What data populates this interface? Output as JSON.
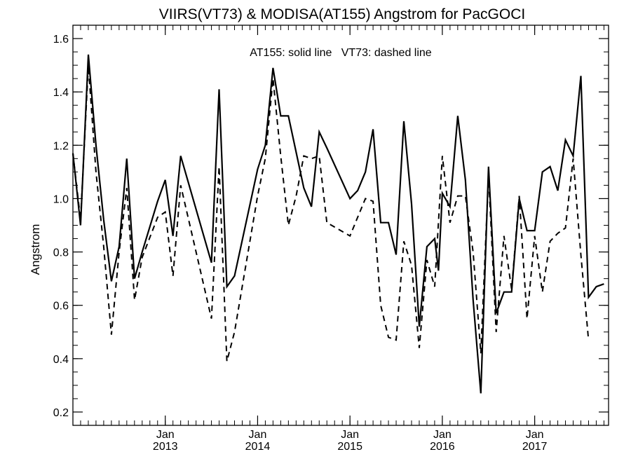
{
  "chart_data": {
    "type": "line",
    "title": "VIIRS(VT73) & MODISA(AT155)  Angstrom for PacGOCI",
    "ylabel": "Angstrom",
    "xlabel": "",
    "annotation": "AT155: solid line   VT73: dashed line",
    "xlim": [
      2012.0,
      2017.8
    ],
    "ylim": [
      0.15,
      1.65
    ],
    "y_ticks": [
      0.2,
      0.4,
      0.6,
      0.8,
      1.0,
      1.2,
      1.4,
      1.6
    ],
    "y_tick_labels": [
      "0.2",
      "0.4",
      "0.6",
      "0.8",
      "1.0",
      "1.2",
      "1.4",
      "1.6"
    ],
    "x_ticks": [
      {
        "x": 2013.0,
        "month": "Jan",
        "year": "2013"
      },
      {
        "x": 2014.0,
        "month": "Jan",
        "year": "2014"
      },
      {
        "x": 2015.0,
        "month": "Jan",
        "year": "2015"
      },
      {
        "x": 2016.0,
        "month": "Jan",
        "year": "2016"
      },
      {
        "x": 2017.0,
        "month": "Jan",
        "year": "2017"
      }
    ],
    "grid": false,
    "series": [
      {
        "name": "AT155",
        "style": "solid",
        "color": "#000000",
        "points": [
          [
            2012.0,
            1.17
          ],
          [
            2012.083,
            0.9
          ],
          [
            2012.167,
            1.54
          ],
          [
            2012.25,
            1.2
          ],
          [
            2012.333,
            0.92
          ],
          [
            2012.417,
            0.69
          ],
          [
            2012.5,
            0.82
          ],
          [
            2012.583,
            1.15
          ],
          [
            2012.667,
            0.7
          ],
          [
            2012.75,
            0.8
          ],
          [
            2012.917,
            0.99
          ],
          [
            2013.0,
            1.07
          ],
          [
            2013.083,
            0.86
          ],
          [
            2013.167,
            1.16
          ],
          [
            2013.5,
            0.76
          ],
          [
            2013.583,
            1.41
          ],
          [
            2013.667,
            0.67
          ],
          [
            2013.75,
            0.71
          ],
          [
            2014.0,
            1.11
          ],
          [
            2014.083,
            1.2
          ],
          [
            2014.167,
            1.49
          ],
          [
            2014.25,
            1.31
          ],
          [
            2014.333,
            1.31
          ],
          [
            2014.5,
            1.04
          ],
          [
            2014.583,
            0.97
          ],
          [
            2014.667,
            1.25
          ],
          [
            2014.75,
            1.19
          ],
          [
            2015.0,
            1.0
          ],
          [
            2015.083,
            1.03
          ],
          [
            2015.167,
            1.1
          ],
          [
            2015.25,
            1.26
          ],
          [
            2015.333,
            0.91
          ],
          [
            2015.417,
            0.91
          ],
          [
            2015.5,
            0.79
          ],
          [
            2015.583,
            1.29
          ],
          [
            2015.667,
            0.98
          ],
          [
            2015.75,
            0.52
          ],
          [
            2015.833,
            0.82
          ],
          [
            2015.917,
            0.85
          ],
          [
            2015.958,
            0.73
          ],
          [
            2016.0,
            1.02
          ],
          [
            2016.083,
            0.97
          ],
          [
            2016.167,
            1.31
          ],
          [
            2016.25,
            1.07
          ],
          [
            2016.333,
            0.62
          ],
          [
            2016.417,
            0.27
          ],
          [
            2016.5,
            1.12
          ],
          [
            2016.583,
            0.57
          ],
          [
            2016.667,
            0.65
          ],
          [
            2016.75,
            0.65
          ],
          [
            2016.833,
            1.0
          ],
          [
            2016.917,
            0.88
          ],
          [
            2017.0,
            0.88
          ],
          [
            2017.083,
            1.1
          ],
          [
            2017.167,
            1.12
          ],
          [
            2017.25,
            1.03
          ],
          [
            2017.333,
            1.22
          ],
          [
            2017.417,
            1.16
          ],
          [
            2017.5,
            1.46
          ],
          [
            2017.583,
            0.63
          ],
          [
            2017.667,
            0.67
          ],
          [
            2017.75,
            0.68
          ]
        ]
      },
      {
        "name": "VT73",
        "style": "dashed",
        "color": "#000000",
        "points": [
          [
            2012.0,
            1.17
          ],
          [
            2012.083,
            0.92
          ],
          [
            2012.167,
            1.5
          ],
          [
            2012.25,
            1.1
          ],
          [
            2012.333,
            0.82
          ],
          [
            2012.417,
            0.49
          ],
          [
            2012.5,
            0.8
          ],
          [
            2012.583,
            1.04
          ],
          [
            2012.667,
            0.62
          ],
          [
            2012.75,
            0.78
          ],
          [
            2012.917,
            0.93
          ],
          [
            2013.0,
            0.95
          ],
          [
            2013.083,
            0.71
          ],
          [
            2013.167,
            1.05
          ],
          [
            2013.5,
            0.55
          ],
          [
            2013.583,
            1.12
          ],
          [
            2013.667,
            0.39
          ],
          [
            2013.75,
            0.5
          ],
          [
            2014.0,
            1.01
          ],
          [
            2014.083,
            1.15
          ],
          [
            2014.167,
            1.45
          ],
          [
            2014.25,
            1.16
          ],
          [
            2014.333,
            0.9
          ],
          [
            2014.417,
            1.01
          ],
          [
            2014.5,
            1.16
          ],
          [
            2014.583,
            1.15
          ],
          [
            2014.667,
            1.16
          ],
          [
            2014.75,
            0.91
          ],
          [
            2015.0,
            0.86
          ],
          [
            2015.083,
            0.93
          ],
          [
            2015.167,
            1.0
          ],
          [
            2015.25,
            0.99
          ],
          [
            2015.333,
            0.6
          ],
          [
            2015.417,
            0.48
          ],
          [
            2015.5,
            0.47
          ],
          [
            2015.583,
            0.84
          ],
          [
            2015.667,
            0.75
          ],
          [
            2015.75,
            0.44
          ],
          [
            2015.833,
            0.77
          ],
          [
            2015.917,
            0.67
          ],
          [
            2016.0,
            1.16
          ],
          [
            2016.083,
            0.91
          ],
          [
            2016.167,
            1.01
          ],
          [
            2016.25,
            1.01
          ],
          [
            2016.333,
            0.8
          ],
          [
            2016.417,
            0.42
          ],
          [
            2016.5,
            1.09
          ],
          [
            2016.583,
            0.5
          ],
          [
            2016.667,
            0.86
          ],
          [
            2016.75,
            0.66
          ],
          [
            2016.833,
            1.01
          ],
          [
            2016.917,
            0.55
          ],
          [
            2017.0,
            0.86
          ],
          [
            2017.083,
            0.65
          ],
          [
            2017.167,
            0.84
          ],
          [
            2017.25,
            0.87
          ],
          [
            2017.333,
            0.89
          ],
          [
            2017.417,
            1.15
          ],
          [
            2017.5,
            0.79
          ],
          [
            2017.583,
            0.47
          ]
        ]
      }
    ]
  }
}
